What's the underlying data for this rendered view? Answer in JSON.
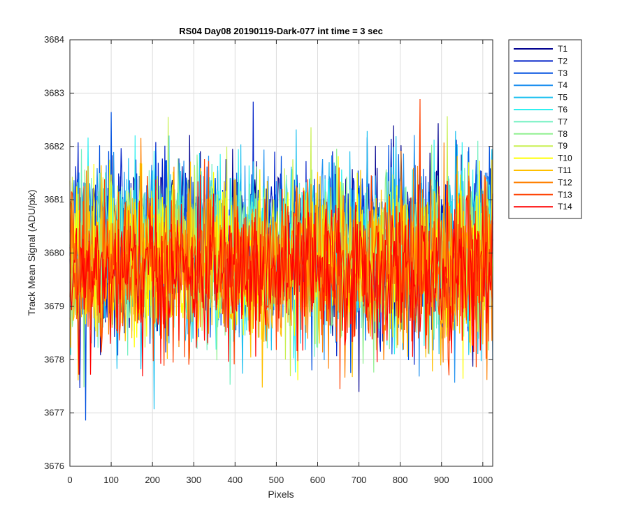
{
  "chart_data": {
    "type": "line",
    "title": "RS04 Day08 20190119-Dark-077 int time = 3 sec",
    "xlabel": "Pixels",
    "ylabel": "Track Mean Signal (ADU/pix)",
    "xlim": [
      0,
      1024
    ],
    "ylim": [
      3676,
      3684
    ],
    "xticks": [
      0,
      100,
      200,
      300,
      400,
      500,
      600,
      700,
      800,
      900,
      1000
    ],
    "yticks": [
      3676,
      3677,
      3678,
      3679,
      3680,
      3681,
      3682,
      3683,
      3684
    ],
    "grid": true,
    "legend_position": "outside-right-top",
    "series": [
      {
        "name": "T1",
        "color": "#00008f",
        "mean": 3680.2,
        "spread": 1.3
      },
      {
        "name": "T2",
        "color": "#0020c8",
        "mean": 3680.2,
        "spread": 1.3
      },
      {
        "name": "T3",
        "color": "#0050e0",
        "mean": 3680.1,
        "spread": 1.3
      },
      {
        "name": "T4",
        "color": "#1e90f0",
        "mean": 3680.1,
        "spread": 1.3
      },
      {
        "name": "T5",
        "color": "#1cc0f0",
        "mean": 3680.1,
        "spread": 1.3
      },
      {
        "name": "T6",
        "color": "#30f0f0",
        "mean": 3680.0,
        "spread": 1.2
      },
      {
        "name": "T7",
        "color": "#70f0c0",
        "mean": 3680.0,
        "spread": 1.2
      },
      {
        "name": "T8",
        "color": "#90f090",
        "mean": 3680.0,
        "spread": 1.2
      },
      {
        "name": "T9",
        "color": "#c8f050",
        "mean": 3679.9,
        "spread": 1.2
      },
      {
        "name": "T10",
        "color": "#ffff00",
        "mean": 3679.9,
        "spread": 1.2
      },
      {
        "name": "T11",
        "color": "#ffc000",
        "mean": 3679.8,
        "spread": 1.2
      },
      {
        "name": "T12",
        "color": "#ff8000",
        "mean": 3679.7,
        "spread": 1.2
      },
      {
        "name": "T13",
        "color": "#ff4000",
        "mean": 3679.7,
        "spread": 1.2
      },
      {
        "name": "T14",
        "color": "#ff0000",
        "mean": 3679.6,
        "spread": 1.1
      }
    ]
  }
}
